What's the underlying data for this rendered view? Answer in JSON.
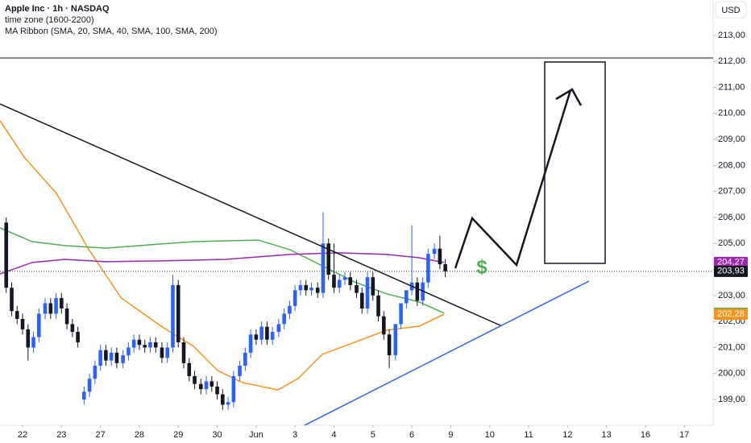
{
  "chart_data": {
    "type": "candlestick",
    "title": "Apple Inc · 1h · NASDAQ",
    "subtitle": "time zone (1600-2200)",
    "indicator": "MA Ribbon (SMA, 20, SMA, 40, SMA, 100, SMA, 200)",
    "currency": "USD",
    "annotations": [
      "$"
    ],
    "up_color": "#2962ff",
    "down_color": "#131722",
    "xlim": [
      -0.58,
      17.74
    ],
    "xticks": [
      {
        "value": 0,
        "label": "22"
      },
      {
        "value": 1,
        "label": "23"
      },
      {
        "value": 2,
        "label": "27"
      },
      {
        "value": 3,
        "label": "28"
      },
      {
        "value": 4,
        "label": "29"
      },
      {
        "value": 5,
        "label": "30"
      },
      {
        "value": 6,
        "label": "Jun"
      },
      {
        "value": 7,
        "label": "3"
      },
      {
        "value": 8,
        "label": "4"
      },
      {
        "value": 9,
        "label": "5"
      },
      {
        "value": 10,
        "label": "6"
      },
      {
        "value": 11,
        "label": "9"
      },
      {
        "value": 12,
        "label": "10"
      },
      {
        "value": 13,
        "label": "11"
      },
      {
        "value": 14,
        "label": "12"
      },
      {
        "value": 15,
        "label": "13"
      },
      {
        "value": 16,
        "label": "16"
      },
      {
        "value": 17,
        "label": "17"
      }
    ],
    "ylim": [
      198.01,
      214.36
    ],
    "yticks": [
      {
        "value": 199,
        "label": "199,00"
      },
      {
        "value": 200,
        "label": "200,00"
      },
      {
        "value": 201,
        "label": "201,00"
      },
      {
        "value": 202,
        "label": "202,00"
      },
      {
        "value": 203,
        "label": "203,00"
      },
      {
        "value": 204,
        "label": "204,00"
      },
      {
        "value": 205,
        "label": "205,00"
      },
      {
        "value": 206,
        "label": "206,00"
      },
      {
        "value": 207,
        "label": "207,00"
      },
      {
        "value": 208,
        "label": "208,00"
      },
      {
        "value": 209,
        "label": "209,00"
      },
      {
        "value": 210,
        "label": "210,00"
      },
      {
        "value": 211,
        "label": "211,00"
      },
      {
        "value": 212,
        "label": "212,00"
      },
      {
        "value": 213,
        "label": "213,00"
      }
    ],
    "candles": {
      "x": [
        -0.42,
        -0.28,
        -0.14,
        0,
        0.14,
        0.28,
        0.42,
        0.58,
        0.72,
        0.86,
        1,
        1.14,
        1.28,
        1.42,
        1.58,
        1.72,
        1.86,
        2,
        2.14,
        2.28,
        2.42,
        2.58,
        2.72,
        2.86,
        3,
        3.14,
        3.28,
        3.42,
        3.58,
        3.72,
        3.86,
        4,
        4.14,
        4.28,
        4.42,
        4.58,
        4.72,
        4.86,
        5,
        5.14,
        5.28,
        5.42,
        5.58,
        5.72,
        5.86,
        6,
        6.14,
        6.28,
        6.42,
        6.58,
        6.72,
        6.86,
        7,
        7.14,
        7.28,
        7.42,
        7.58,
        7.72,
        7.86,
        8,
        8.14,
        8.28,
        8.42,
        8.58,
        8.72,
        8.86,
        9,
        9.14,
        9.28,
        9.42,
        9.58,
        9.72,
        9.86,
        10,
        10.14,
        10.28,
        10.42,
        10.58,
        10.72,
        10.86
      ],
      "open": [
        205.8,
        203.3,
        202.4,
        202.1,
        201.7,
        201.0,
        201.4,
        202.3,
        202.7,
        202.3,
        202.9,
        202.5,
        201.9,
        201.6,
        199.0,
        199.3,
        199.8,
        200.3,
        200.9,
        200.5,
        200.8,
        200.4,
        200.7,
        201.0,
        201.3,
        201.1,
        201.0,
        201.2,
        201.0,
        200.6,
        201.0,
        203.4,
        201.2,
        200.4,
        199.9,
        199.6,
        199.4,
        199.7,
        199.5,
        199.2,
        198.8,
        198.9,
        199.9,
        200.3,
        200.8,
        201.5,
        201.3,
        201.8,
        201.3,
        201.6,
        201.9,
        202.3,
        202.6,
        203.2,
        203.4,
        203.2,
        203.3,
        203.1,
        205.0,
        203.8,
        203.3,
        203.6,
        203.7,
        203.4,
        203.1,
        202.5,
        203.7,
        203.0,
        202.2,
        201.5,
        200.7,
        201.9,
        202.7,
        203.2,
        203.5,
        202.8,
        203.5,
        204.6,
        204.8,
        204.2
      ],
      "high": [
        206.0,
        203.5,
        202.6,
        202.3,
        201.9,
        201.6,
        202.5,
        202.9,
        202.9,
        203.1,
        203.1,
        202.7,
        202.1,
        201.8,
        199.5,
        200.0,
        200.5,
        201.1,
        201.1,
        201.0,
        201.0,
        200.9,
        201.2,
        201.5,
        201.5,
        201.3,
        201.4,
        201.4,
        201.2,
        201.2,
        203.8,
        203.6,
        201.4,
        200.6,
        200.1,
        199.8,
        199.9,
        199.9,
        199.7,
        199.4,
        199.1,
        200.1,
        200.5,
        201.0,
        201.7,
        201.7,
        202.0,
        202.0,
        201.8,
        202.1,
        202.5,
        202.8,
        203.4,
        203.6,
        203.6,
        203.5,
        203.5,
        206.2,
        205.2,
        205.0,
        203.8,
        203.9,
        203.9,
        203.6,
        203.3,
        203.9,
        203.9,
        203.2,
        202.4,
        201.7,
        201.0,
        202.1,
        202.9,
        205.7,
        203.7,
        203.7,
        204.8,
        205.0,
        205.3,
        204.4
      ],
      "low": [
        203.1,
        202.2,
        201.9,
        201.5,
        200.5,
        200.8,
        201.2,
        202.1,
        202.1,
        202.1,
        202.3,
        201.7,
        201.4,
        201.0,
        198.8,
        199.1,
        199.6,
        200.1,
        200.3,
        200.3,
        200.2,
        200.2,
        200.5,
        200.8,
        200.9,
        200.8,
        200.8,
        200.8,
        200.4,
        200.4,
        200.8,
        201.0,
        200.2,
        199.7,
        199.4,
        199.2,
        199.2,
        199.3,
        199.0,
        198.6,
        198.6,
        198.7,
        199.7,
        200.1,
        200.6,
        201.1,
        201.1,
        201.1,
        201.1,
        201.4,
        201.7,
        202.1,
        202.4,
        203.0,
        203.0,
        203.0,
        202.9,
        202.9,
        203.6,
        203.1,
        203.1,
        203.4,
        203.2,
        202.9,
        202.3,
        202.3,
        202.8,
        202.0,
        201.3,
        200.2,
        200.5,
        201.7,
        202.5,
        203.0,
        202.6,
        202.6,
        203.3,
        204.4,
        204.0,
        203.7
      ],
      "close": [
        203.3,
        202.4,
        202.1,
        201.7,
        201.0,
        201.4,
        202.3,
        202.7,
        202.3,
        202.9,
        202.5,
        201.9,
        201.6,
        201.2,
        199.3,
        199.8,
        200.3,
        200.9,
        200.5,
        200.8,
        200.4,
        200.7,
        201.0,
        201.3,
        201.1,
        201.0,
        201.2,
        201.0,
        200.6,
        201.0,
        203.4,
        201.2,
        200.4,
        199.9,
        199.6,
        199.4,
        199.7,
        199.5,
        199.2,
        198.8,
        198.9,
        199.9,
        200.3,
        200.8,
        201.5,
        201.3,
        201.8,
        201.3,
        201.6,
        201.9,
        202.3,
        202.6,
        203.2,
        203.4,
        203.2,
        203.3,
        203.1,
        205.0,
        203.8,
        203.3,
        203.6,
        203.7,
        203.4,
        203.1,
        202.5,
        203.7,
        203.0,
        202.2,
        201.5,
        200.7,
        201.9,
        202.7,
        203.2,
        203.5,
        202.8,
        203.5,
        204.6,
        204.8,
        204.2,
        203.93
      ]
    },
    "series": [
      {
        "color": "#f7931a",
        "x": [
          -0.58,
          0.04,
          0.87,
          1.7,
          2.53,
          3.56,
          4.39,
          5.01,
          5.63,
          6.56,
          7.08,
          7.7,
          8.53,
          9.36,
          10.19,
          10.83
        ],
        "values": [
          209.72,
          208.32,
          206.93,
          204.77,
          202.91,
          201.82,
          201.05,
          200.12,
          199.66,
          199.37,
          199.81,
          200.74,
          201.2,
          201.67,
          201.82,
          202.28
        ]
      },
      {
        "color": "#4caf50",
        "x": [
          -0.58,
          0.25,
          1.08,
          2.12,
          3.56,
          4.39,
          6.05,
          6.87,
          7.7,
          8.53,
          9.36,
          10.19,
          10.83
        ],
        "values": [
          205.6,
          205.07,
          204.92,
          204.82,
          204.98,
          205.07,
          205.13,
          204.76,
          204.14,
          203.52,
          203.06,
          202.75,
          202.32
        ]
      },
      {
        "color": "#9c27b0",
        "x": [
          -0.58,
          0.25,
          1.08,
          2.12,
          3.56,
          5.22,
          6.87,
          8.12,
          9.36,
          10.19,
          10.83
        ],
        "values": [
          203.83,
          204.27,
          204.39,
          204.3,
          204.33,
          204.39,
          204.58,
          204.64,
          204.58,
          204.45,
          204.27
        ]
      }
    ],
    "price_labels": [
      {
        "value": 204.27,
        "label": "204,27",
        "color": "#9c27b0"
      },
      {
        "value": 203.93,
        "label": "203,93",
        "color": "#131722"
      },
      {
        "value": 202.32,
        "label": "202,32",
        "color": "#4caf50"
      },
      {
        "value": 202.28,
        "label": "202,28",
        "color": "#f7931a"
      }
    ]
  }
}
